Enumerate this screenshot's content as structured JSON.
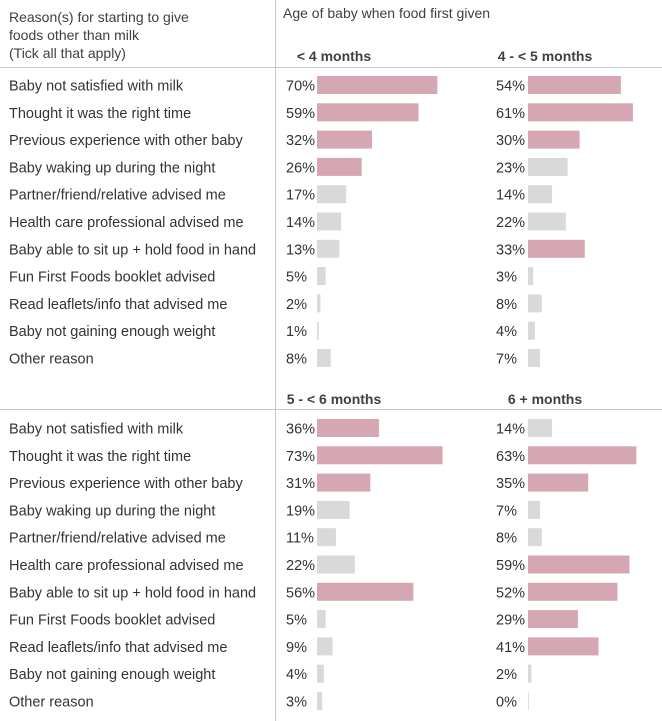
{
  "header": {
    "question_lines": [
      "Reason(s) for starting to give",
      "foods other than milk",
      "(Tick all that apply)"
    ],
    "age_title": "Age of baby when food first given"
  },
  "colors": {
    "highlight": "#d4a7b3",
    "normal": "#d9d9d9",
    "divider": "#c8c8c8"
  },
  "chart_data": [
    {
      "type": "bar",
      "series": [
        {
          "name": "< 4 months",
          "values": [
            70,
            59,
            32,
            26,
            17,
            14,
            13,
            5,
            2,
            1,
            8
          ],
          "highlighted": [
            true,
            true,
            true,
            true,
            false,
            false,
            false,
            false,
            false,
            false,
            false
          ]
        },
        {
          "name": "4 - < 5 months",
          "values": [
            54,
            61,
            30,
            23,
            14,
            22,
            33,
            3,
            8,
            4,
            7
          ],
          "highlighted": [
            true,
            true,
            true,
            false,
            false,
            false,
            true,
            false,
            false,
            false,
            false
          ]
        }
      ],
      "categories": [
        "Baby not satisfied with milk",
        "Thought it was the right time",
        "Previous experience with other baby",
        "Baby waking up during the night",
        "Partner/friend/relative advised me",
        "Health care professional advised me",
        "Baby able to sit up + hold food in hand",
        "Fun First Foods booklet advised",
        "Read leaflets/info that advised me",
        "Baby not gaining enough weight",
        "Other reason"
      ],
      "orientation": "horizontal",
      "value_format": "percent"
    },
    {
      "type": "bar",
      "series": [
        {
          "name": "5 - < 6 months",
          "values": [
            36,
            73,
            31,
            19,
            11,
            22,
            56,
            5,
            9,
            4,
            3
          ],
          "highlighted": [
            true,
            true,
            true,
            false,
            false,
            false,
            true,
            false,
            false,
            false,
            false
          ]
        },
        {
          "name": "6 + months",
          "values": [
            14,
            63,
            35,
            7,
            8,
            59,
            52,
            29,
            41,
            2,
            0
          ],
          "highlighted": [
            false,
            true,
            true,
            false,
            false,
            true,
            true,
            true,
            true,
            false,
            false
          ]
        }
      ],
      "categories": [
        "Baby not satisfied with milk",
        "Thought it was the right time",
        "Previous experience with other baby",
        "Baby waking up during the night",
        "Partner/friend/relative advised me",
        "Health care professional advised me",
        "Baby able to sit up + hold food in hand",
        "Fun First Foods booklet advised",
        "Read leaflets/info that advised me",
        "Baby not gaining enough weight",
        "Other reason"
      ],
      "orientation": "horizontal",
      "value_format": "percent"
    }
  ]
}
